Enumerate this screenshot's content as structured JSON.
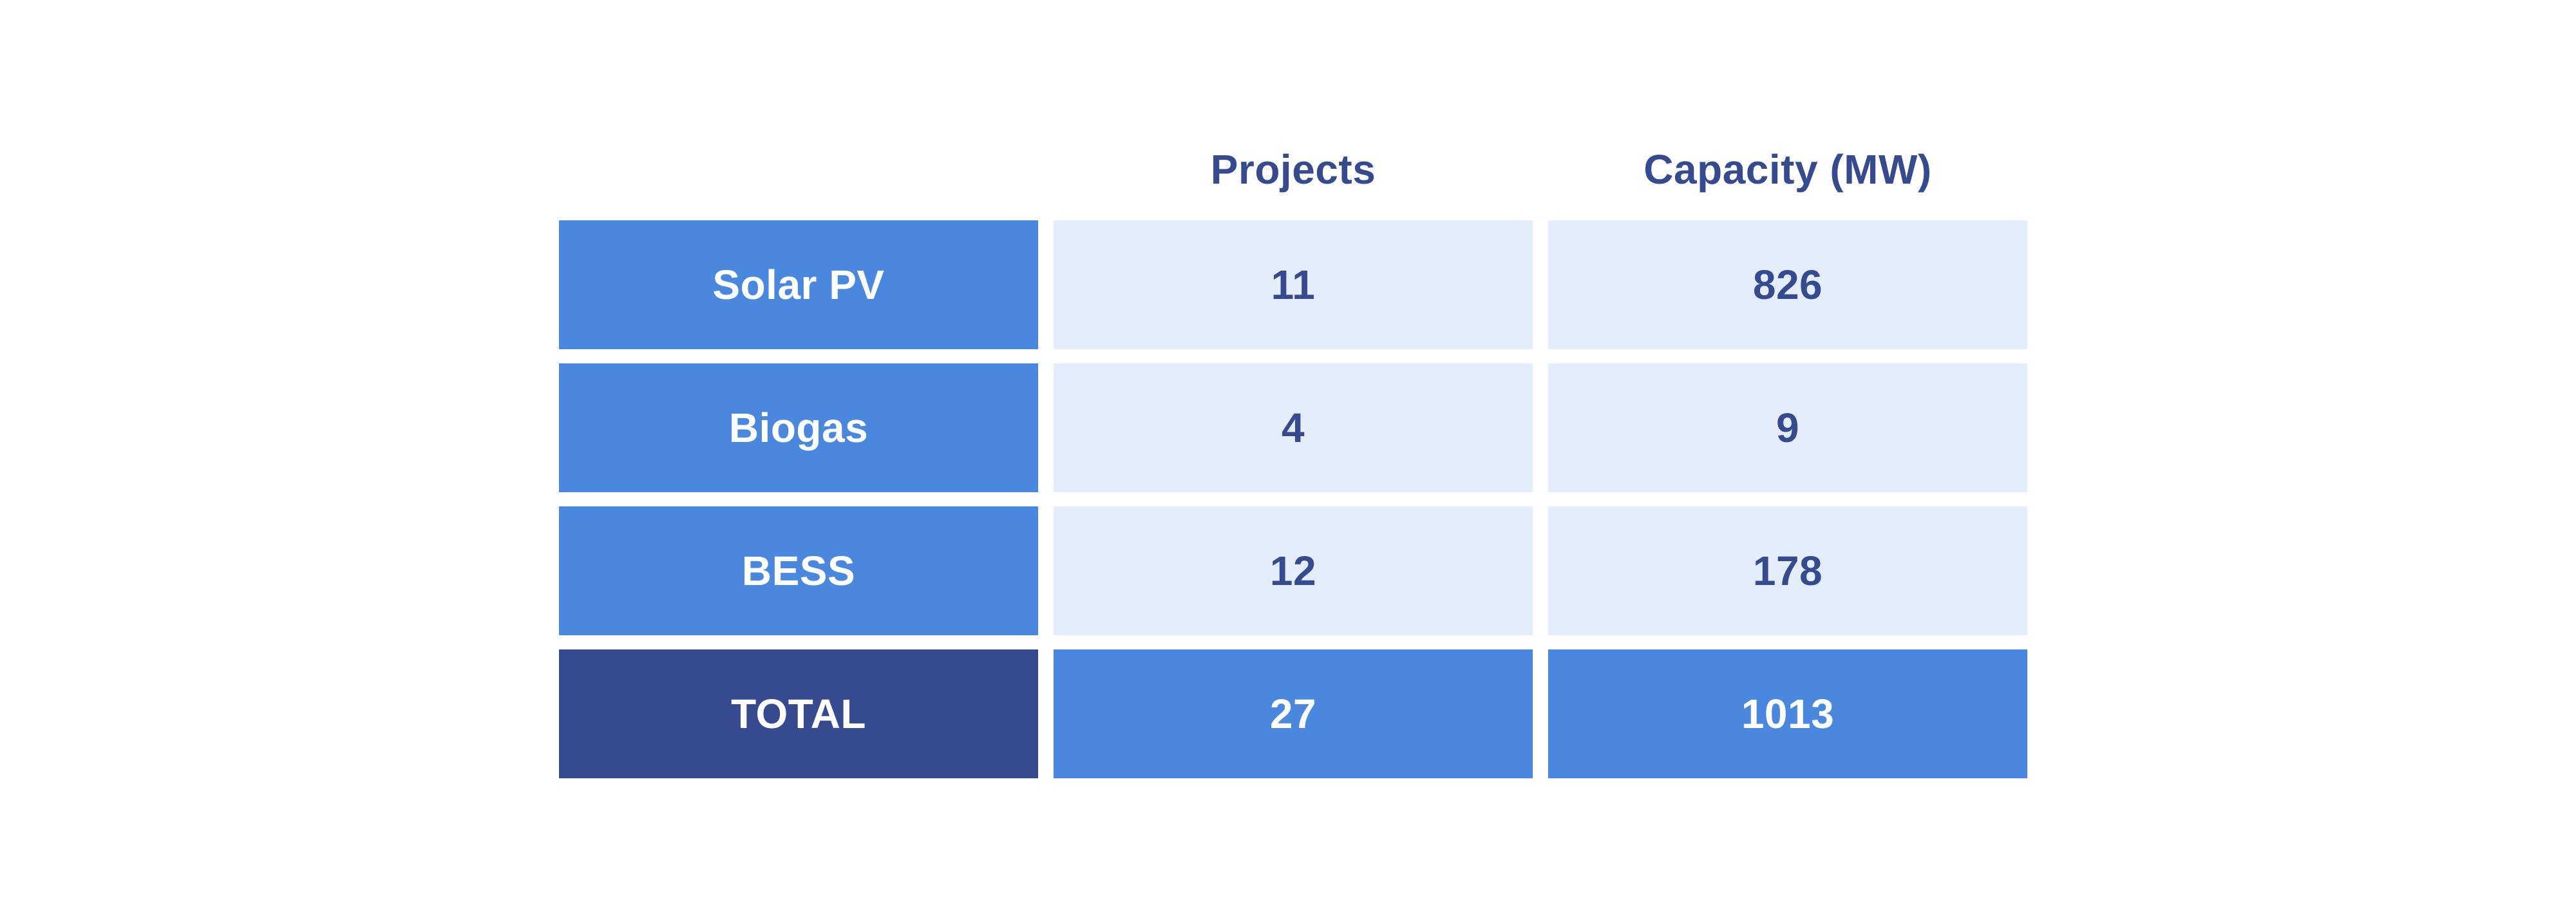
{
  "chart_data": {
    "type": "table",
    "columns": [
      "Projects",
      "Capacity (MW)"
    ],
    "rows": [
      {
        "label": "Solar PV",
        "projects": "11",
        "capacity": "826"
      },
      {
        "label": "Biogas",
        "projects": "4",
        "capacity": "9"
      },
      {
        "label": "BESS",
        "projects": "12",
        "capacity": "178"
      }
    ],
    "total": {
      "label": "TOTAL",
      "projects": "27",
      "capacity": "1013"
    }
  },
  "colors": {
    "label_bg": "#4a88e0",
    "value_bg": "#e3eefa",
    "total_label_bg": "#364b8f",
    "text_dark": "#364b8f",
    "text_light": "#ffffff"
  }
}
